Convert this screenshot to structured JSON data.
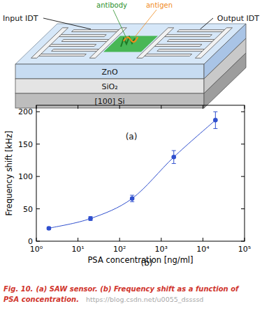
{
  "chart_data": {
    "type": "line",
    "marker": "circle",
    "color": "#2f4fce",
    "x": [
      2,
      20,
      200,
      2000,
      20000
    ],
    "values": [
      20,
      35,
      66,
      130,
      187
    ],
    "errors": [
      2,
      3,
      5,
      10,
      13
    ],
    "xlabel": "PSA concentration [ng/ml]",
    "ylabel": "Frequency shift [kHz]",
    "log": "x",
    "xlim": [
      1,
      100000
    ],
    "xticks": [
      {
        "value": 1,
        "label": "10⁰"
      },
      {
        "value": 10,
        "label": "10¹"
      },
      {
        "value": 100,
        "label": "10²"
      },
      {
        "value": 1000,
        "label": "10³"
      },
      {
        "value": 10000,
        "label": "10⁴"
      },
      {
        "value": 100000,
        "label": "10⁵"
      }
    ],
    "ylim": [
      0,
      210
    ],
    "yticks": [
      0,
      50,
      100,
      150,
      200
    ],
    "panel_label": "(b)"
  },
  "diagram": {
    "panel_label": "(a)",
    "input": "Input IDT",
    "output": "Output IDT",
    "antibody": "antibody",
    "antigen": "antigen",
    "layers": [
      "ZnO",
      "SiO₂",
      "[100] Si"
    ]
  },
  "caption": {
    "number": "Fig. 10.",
    "lines": [
      "(a) SAW sensor. (b) Frequency shift as a function of",
      "PSA concentration."
    ]
  },
  "watermark": "https://blog.csdn.net/u0055_dssssd"
}
